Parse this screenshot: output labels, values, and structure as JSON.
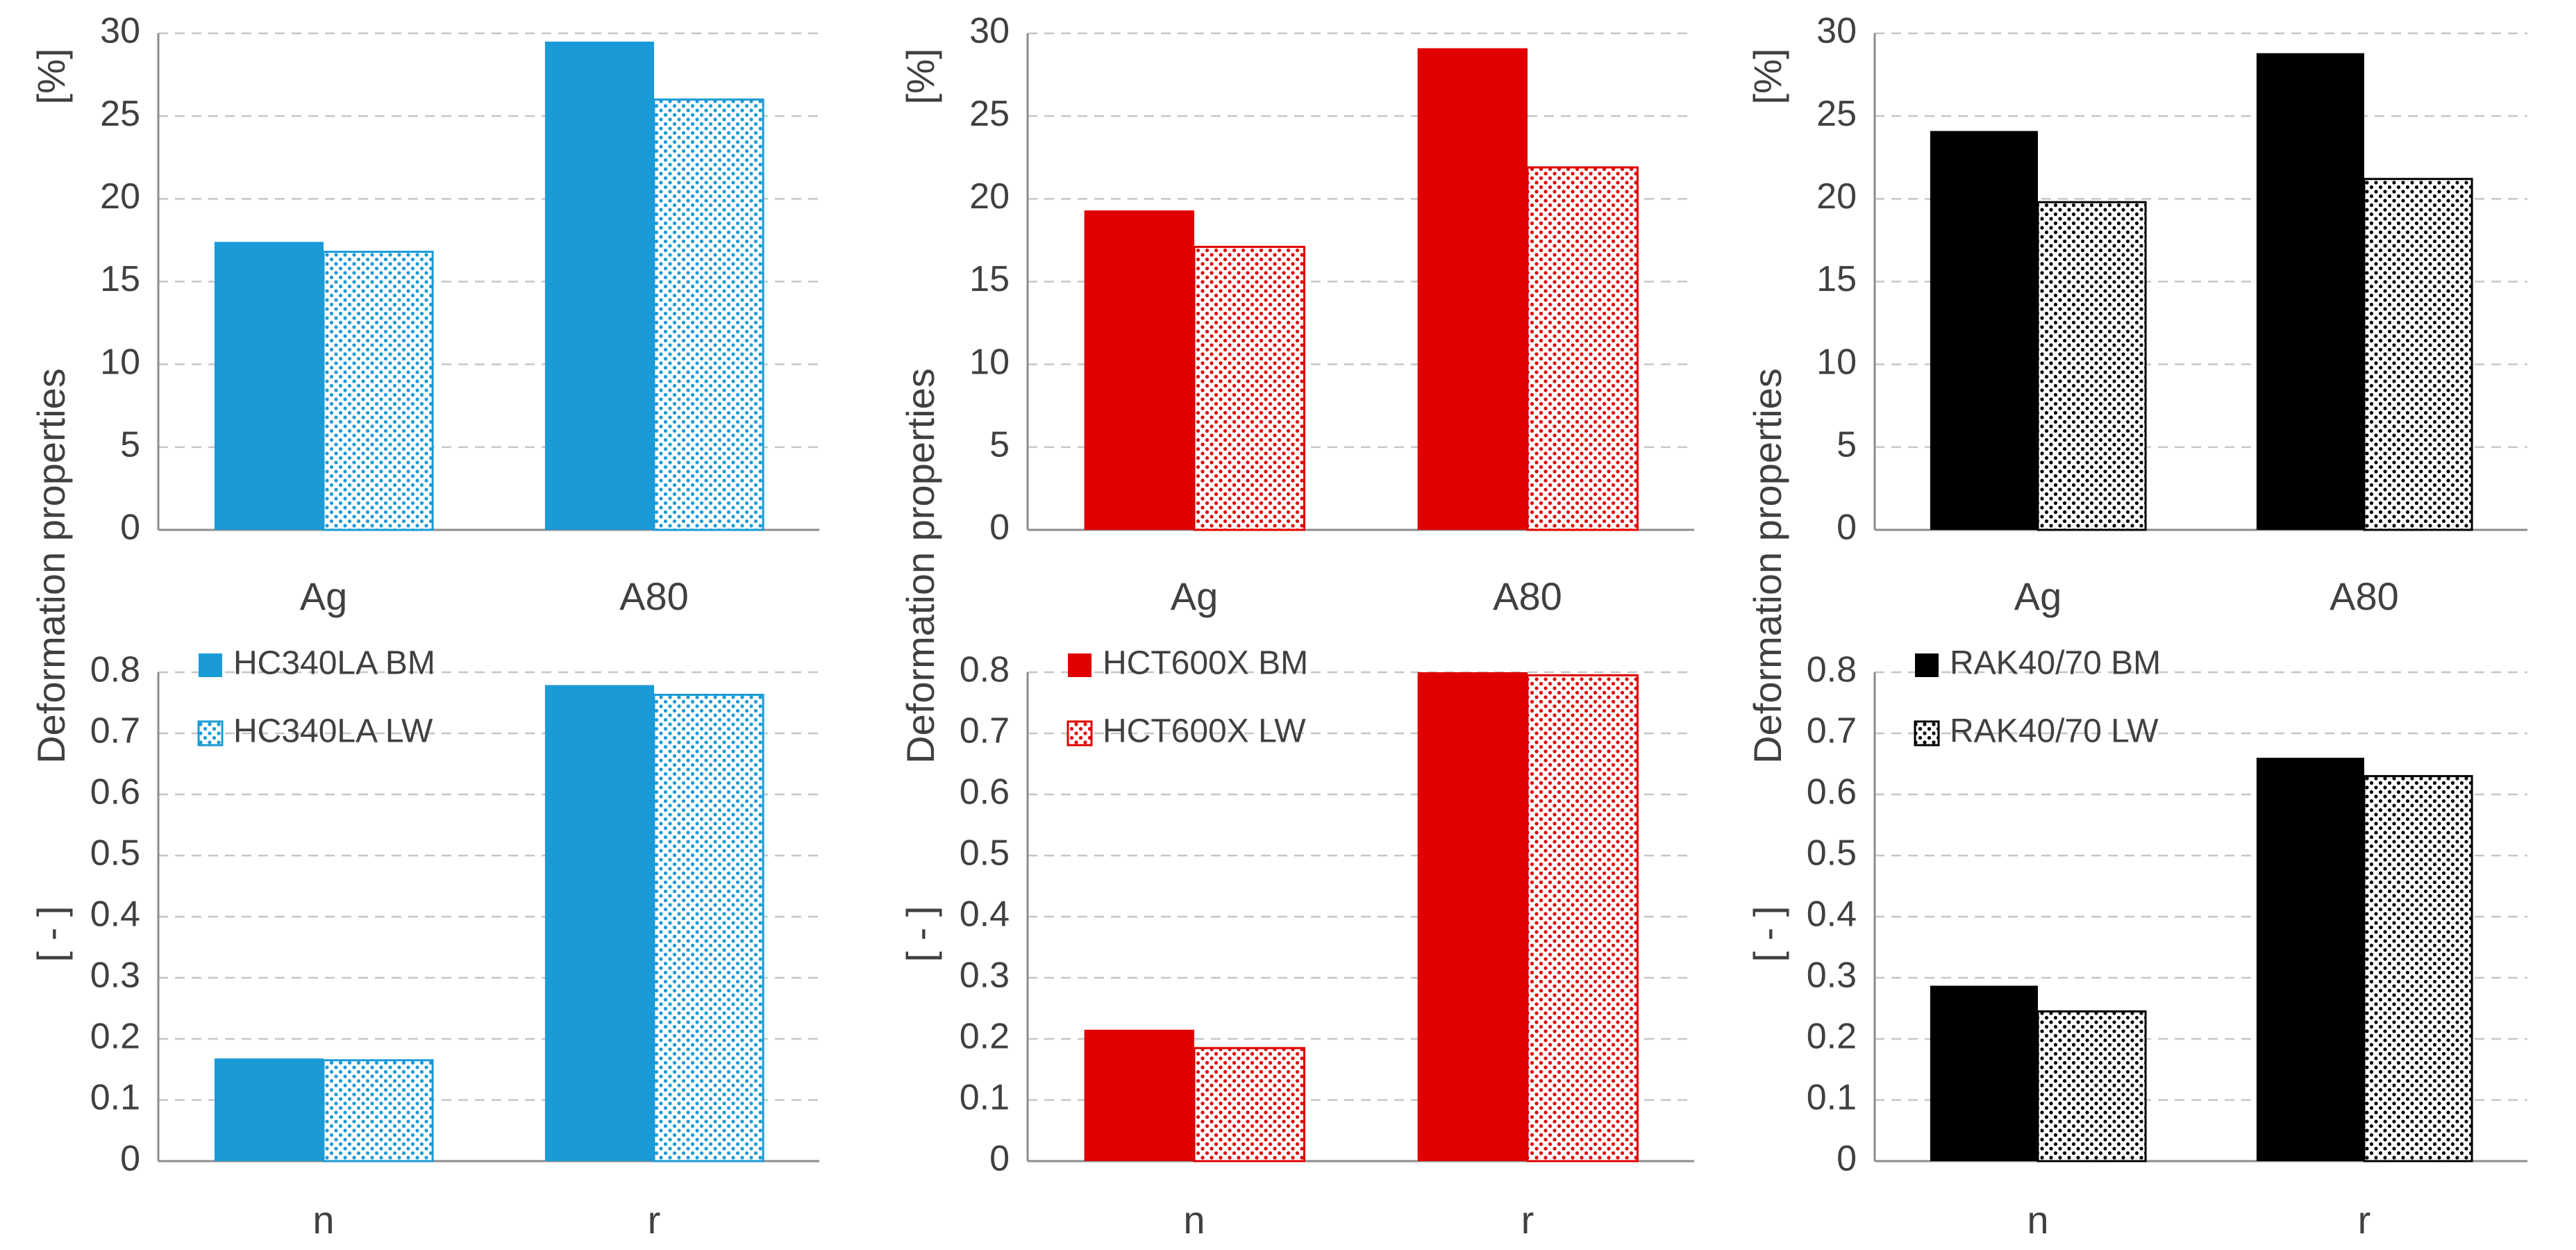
{
  "figure": {
    "y_label": "Deformation properties",
    "units": {
      "top": "[%]",
      "bottom": "[ - ]"
    }
  },
  "chart_data": [
    {
      "type": "bar",
      "row": "top",
      "col": 0,
      "categories": [
        "Ag",
        "A80"
      ],
      "ylim": [
        0,
        30
      ],
      "yticks": [
        0,
        5,
        10,
        15,
        20,
        25,
        30
      ],
      "grid": true,
      "series": [
        {
          "name": "HC340LA BM",
          "values": [
            17.4,
            29.5
          ],
          "color": "#1a9ad6",
          "pattern": "solid"
        },
        {
          "name": "HC340LA LW",
          "values": [
            16.8,
            26.0
          ],
          "color": "#1a9ad6",
          "pattern": "dots"
        }
      ]
    },
    {
      "type": "bar",
      "row": "top",
      "col": 1,
      "categories": [
        "Ag",
        "A80"
      ],
      "ylim": [
        0,
        30
      ],
      "yticks": [
        0,
        5,
        10,
        15,
        20,
        25,
        30
      ],
      "grid": true,
      "series": [
        {
          "name": "HCT600X BM",
          "values": [
            19.3,
            29.1
          ],
          "color": "#e00000",
          "pattern": "solid"
        },
        {
          "name": "HCT600X LW",
          "values": [
            17.1,
            21.9
          ],
          "color": "#e00000",
          "pattern": "dots"
        }
      ]
    },
    {
      "type": "bar",
      "row": "top",
      "col": 2,
      "categories": [
        "Ag",
        "A80"
      ],
      "ylim": [
        0,
        30
      ],
      "yticks": [
        0,
        5,
        10,
        15,
        20,
        25,
        30
      ],
      "grid": true,
      "series": [
        {
          "name": "RAK40/70 BM",
          "values": [
            24.1,
            28.8
          ],
          "color": "#000000",
          "pattern": "solid"
        },
        {
          "name": "RAK40/70 LW",
          "values": [
            19.8,
            21.2
          ],
          "color": "#000000",
          "pattern": "dots"
        }
      ]
    },
    {
      "type": "bar",
      "row": "bottom",
      "col": 0,
      "categories": [
        "n",
        "r"
      ],
      "ylim": [
        0,
        0.8
      ],
      "yticks": [
        0,
        0.1,
        0.2,
        0.3,
        0.4,
        0.5,
        0.6,
        0.7,
        0.8
      ],
      "grid": true,
      "legend": "top-left",
      "series": [
        {
          "name": "HC340LA BM",
          "values": [
            0.168,
            0.779
          ],
          "color": "#1a9ad6",
          "pattern": "solid"
        },
        {
          "name": "HC340LA LW",
          "values": [
            0.165,
            0.763
          ],
          "color": "#1a9ad6",
          "pattern": "dots"
        }
      ]
    },
    {
      "type": "bar",
      "row": "bottom",
      "col": 1,
      "categories": [
        "n",
        "r"
      ],
      "ylim": [
        0,
        0.8
      ],
      "yticks": [
        0,
        0.1,
        0.2,
        0.3,
        0.4,
        0.5,
        0.6,
        0.7,
        0.8
      ],
      "grid": true,
      "legend": "top-left",
      "series": [
        {
          "name": "HCT600X BM",
          "values": [
            0.215,
            0.8
          ],
          "color": "#e00000",
          "pattern": "solid"
        },
        {
          "name": "HCT600X LW",
          "values": [
            0.185,
            0.795
          ],
          "color": "#e00000",
          "pattern": "dots"
        }
      ]
    },
    {
      "type": "bar",
      "row": "bottom",
      "col": 2,
      "categories": [
        "n",
        "r"
      ],
      "ylim": [
        0,
        0.8
      ],
      "yticks": [
        0,
        0.1,
        0.2,
        0.3,
        0.4,
        0.5,
        0.6,
        0.7,
        0.8
      ],
      "grid": true,
      "legend": "top-left",
      "series": [
        {
          "name": "RAK40/70 BM",
          "values": [
            0.287,
            0.66
          ],
          "color": "#000000",
          "pattern": "solid"
        },
        {
          "name": "RAK40/70 LW",
          "values": [
            0.245,
            0.63
          ],
          "color": "#000000",
          "pattern": "dots"
        }
      ]
    }
  ]
}
